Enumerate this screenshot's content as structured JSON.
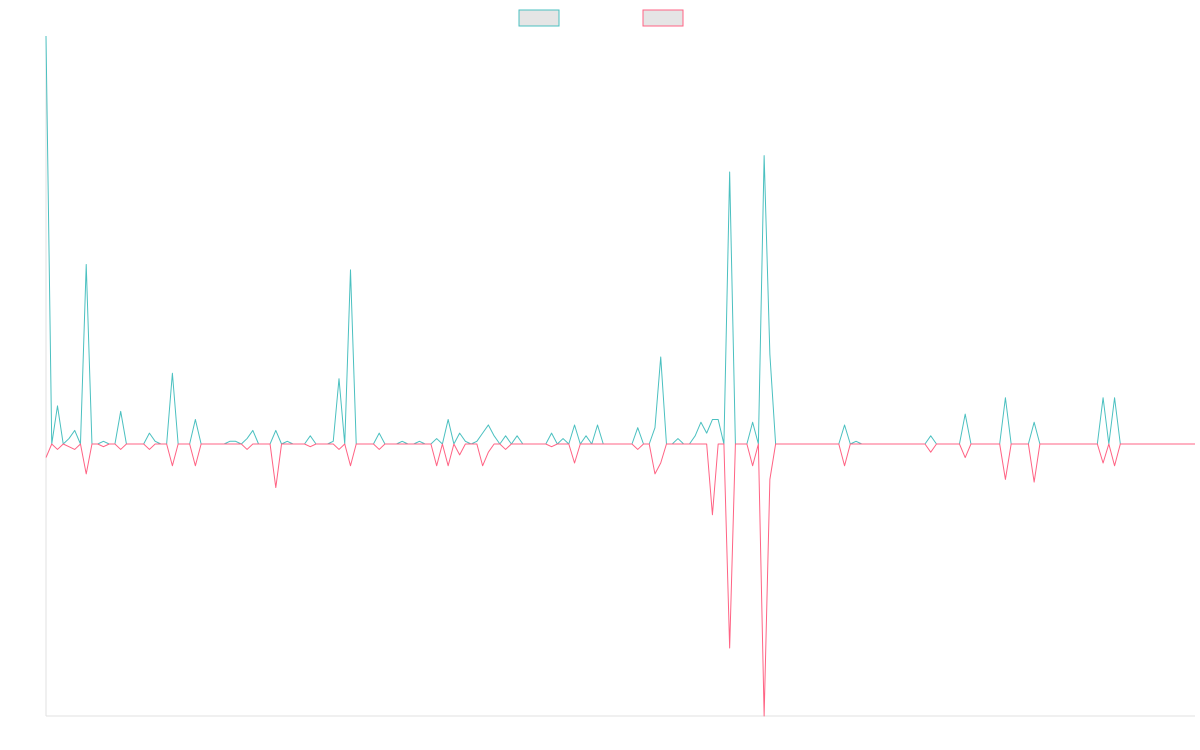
{
  "chart_data": {
    "type": "line",
    "title": "",
    "xlabel": "",
    "ylabel": "",
    "grid": false,
    "legend": "top-center",
    "ylim": [
      -1.0,
      1.5
    ],
    "x_count": 200,
    "series": [
      {
        "color": "#4bc0c0",
        "legend_fill": "#e5e5e5",
        "points": [
          [
            0,
            1.5
          ],
          [
            1,
            0.0
          ],
          [
            2,
            0.14
          ],
          [
            3,
            0.0
          ],
          [
            4,
            0.02
          ],
          [
            5,
            0.05
          ],
          [
            6,
            0.0
          ],
          [
            7,
            0.66
          ],
          [
            8,
            0.0
          ],
          [
            10,
            0.01
          ],
          [
            13,
            0.12
          ],
          [
            14,
            0.0
          ],
          [
            18,
            0.04
          ],
          [
            19,
            0.01
          ],
          [
            20,
            0.0
          ],
          [
            22,
            0.26
          ],
          [
            24,
            0.0
          ],
          [
            26,
            0.09
          ],
          [
            28,
            0.0
          ],
          [
            32,
            0.01
          ],
          [
            33,
            0.01
          ],
          [
            35,
            0.02
          ],
          [
            36,
            0.05
          ],
          [
            38,
            0.0
          ],
          [
            40,
            0.05
          ],
          [
            41,
            0.0
          ],
          [
            42,
            0.01
          ],
          [
            44,
            0.0
          ],
          [
            46,
            0.03
          ],
          [
            50,
            0.01
          ],
          [
            51,
            0.24
          ],
          [
            52,
            0.0
          ],
          [
            53,
            0.64
          ],
          [
            54,
            0.0
          ],
          [
            56,
            0.0
          ],
          [
            58,
            0.04
          ],
          [
            60,
            0.0
          ],
          [
            62,
            0.01
          ],
          [
            63,
            0.0
          ],
          [
            65,
            0.01
          ],
          [
            66,
            0.0
          ],
          [
            68,
            0.02
          ],
          [
            70,
            0.09
          ],
          [
            72,
            0.04
          ],
          [
            73,
            0.01
          ],
          [
            74,
            0.0
          ],
          [
            75,
            0.01
          ],
          [
            76,
            0.04
          ],
          [
            77,
            0.07
          ],
          [
            78,
            0.03
          ],
          [
            80,
            0.03
          ],
          [
            82,
            0.03
          ],
          [
            84,
            0.0
          ],
          [
            88,
            0.04
          ],
          [
            89,
            0.0
          ],
          [
            90,
            0.02
          ],
          [
            92,
            0.07
          ],
          [
            94,
            0.03
          ],
          [
            96,
            0.07
          ],
          [
            98,
            0.0
          ],
          [
            103,
            0.06
          ],
          [
            104,
            0.0
          ],
          [
            106,
            0.06
          ],
          [
            107,
            0.32
          ],
          [
            108,
            0.0
          ],
          [
            110,
            0.02
          ],
          [
            111,
            0.0
          ],
          [
            113,
            0.03
          ],
          [
            114,
            0.08
          ],
          [
            115,
            0.04
          ],
          [
            116,
            0.09
          ],
          [
            117,
            0.09
          ],
          [
            118,
            0.0
          ],
          [
            119,
            1.0
          ],
          [
            120,
            0.0
          ],
          [
            122,
            0.0
          ],
          [
            123,
            0.08
          ],
          [
            124,
            0.0
          ],
          [
            125,
            1.06
          ],
          [
            126,
            0.33
          ],
          [
            127,
            0.0
          ],
          [
            139,
            0.07
          ],
          [
            140,
            0.0
          ],
          [
            141,
            0.01
          ],
          [
            142,
            0.0
          ],
          [
            148,
            0.0
          ],
          [
            154,
            0.03
          ],
          [
            155,
            0.0
          ],
          [
            160,
            0.11
          ],
          [
            161,
            0.0
          ],
          [
            167,
            0.17
          ],
          [
            168,
            0.0
          ],
          [
            170,
            0.0
          ],
          [
            172,
            0.08
          ],
          [
            173,
            0.0
          ],
          [
            180,
            0.0
          ],
          [
            184,
            0.17
          ],
          [
            185,
            0.0
          ],
          [
            186,
            0.17
          ],
          [
            187,
            0.0
          ],
          [
            200,
            0.0
          ]
        ]
      },
      {
        "color": "#ff6384",
        "legend_fill": "#e5e5e5",
        "points": [
          [
            0,
            -0.05
          ],
          [
            1,
            0.0
          ],
          [
            2,
            -0.02
          ],
          [
            3,
            0.0
          ],
          [
            4,
            -0.01
          ],
          [
            5,
            -0.02
          ],
          [
            6,
            0.0
          ],
          [
            7,
            -0.11
          ],
          [
            8,
            0.0
          ],
          [
            10,
            -0.01
          ],
          [
            13,
            -0.02
          ],
          [
            14,
            0.0
          ],
          [
            18,
            -0.02
          ],
          [
            19,
            0.0
          ],
          [
            22,
            -0.08
          ],
          [
            24,
            0.0
          ],
          [
            26,
            -0.08
          ],
          [
            28,
            0.0
          ],
          [
            35,
            -0.02
          ],
          [
            36,
            0.0
          ],
          [
            40,
            -0.16
          ],
          [
            41,
            0.0
          ],
          [
            46,
            -0.01
          ],
          [
            51,
            -0.02
          ],
          [
            52,
            0.0
          ],
          [
            53,
            -0.08
          ],
          [
            54,
            0.0
          ],
          [
            58,
            -0.02
          ],
          [
            60,
            0.0
          ],
          [
            68,
            -0.08
          ],
          [
            70,
            -0.08
          ],
          [
            71,
            0.0
          ],
          [
            72,
            -0.04
          ],
          [
            73,
            0.0
          ],
          [
            76,
            -0.08
          ],
          [
            77,
            -0.03
          ],
          [
            78,
            0.0
          ],
          [
            80,
            -0.02
          ],
          [
            81,
            0.0
          ],
          [
            88,
            -0.01
          ],
          [
            89,
            0.0
          ],
          [
            92,
            -0.07
          ],
          [
            93,
            0.0
          ],
          [
            103,
            -0.02
          ],
          [
            104,
            0.0
          ],
          [
            106,
            -0.11
          ],
          [
            107,
            -0.07
          ],
          [
            108,
            0.0
          ],
          [
            116,
            -0.26
          ],
          [
            117,
            0.0
          ],
          [
            119,
            -0.75
          ],
          [
            120,
            0.0
          ],
          [
            123,
            -0.08
          ],
          [
            124,
            0.0
          ],
          [
            125,
            -1.0
          ],
          [
            126,
            -0.13
          ],
          [
            127,
            0.0
          ],
          [
            139,
            -0.08
          ],
          [
            140,
            0.0
          ],
          [
            154,
            -0.03
          ],
          [
            155,
            0.0
          ],
          [
            160,
            -0.05
          ],
          [
            161,
            0.0
          ],
          [
            167,
            -0.13
          ],
          [
            168,
            0.0
          ],
          [
            172,
            -0.14
          ],
          [
            173,
            0.0
          ],
          [
            184,
            -0.07
          ],
          [
            185,
            0.0
          ],
          [
            186,
            -0.08
          ],
          [
            187,
            0.0
          ],
          [
            200,
            0.0
          ]
        ]
      }
    ]
  }
}
